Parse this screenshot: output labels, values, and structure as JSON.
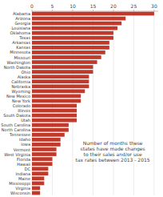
{
  "chart_data": {
    "type": "bar",
    "orientation": "horizontal",
    "categories": [
      "Alabama",
      "Arizona",
      "Georgia",
      "Louisiana",
      "Oklahoma",
      "Texas",
      "Arkansas",
      "Kansas",
      "Minnesota",
      "Missouri",
      "Washington",
      "North Dakota",
      "Ohio",
      "Alaska",
      "California",
      "Nebraska",
      "Wyoming",
      "New Mexico",
      "New York",
      "Colorado",
      "Illinois",
      "South Dakota",
      "Utah",
      "South Carolina",
      "North Carolina",
      "Tennessee",
      "Idaho",
      "Iowa",
      "Vermont",
      "West Virginia",
      "Florida",
      "Hawaii",
      "DC",
      "Indiana",
      "Maine",
      "Mississippi",
      "Virginia",
      "Wisconsin"
    ],
    "values": [
      30,
      23,
      22,
      21,
      20,
      20,
      19,
      19,
      18,
      17,
      16,
      15,
      15,
      14,
      14,
      14,
      13,
      12,
      12,
      11,
      11,
      11,
      11,
      9,
      9,
      8,
      7,
      7,
      6,
      6,
      5,
      5,
      4,
      4,
      3,
      3,
      2,
      2
    ],
    "color": "#c0392b",
    "xlim": [
      0,
      31
    ],
    "xticks": [
      0,
      5,
      10,
      15,
      20,
      25,
      30
    ],
    "grid": true,
    "annotation": "Number of months these\nstates have made changes\nto their sales and/or use\ntax rates between 2013 - 2015"
  }
}
